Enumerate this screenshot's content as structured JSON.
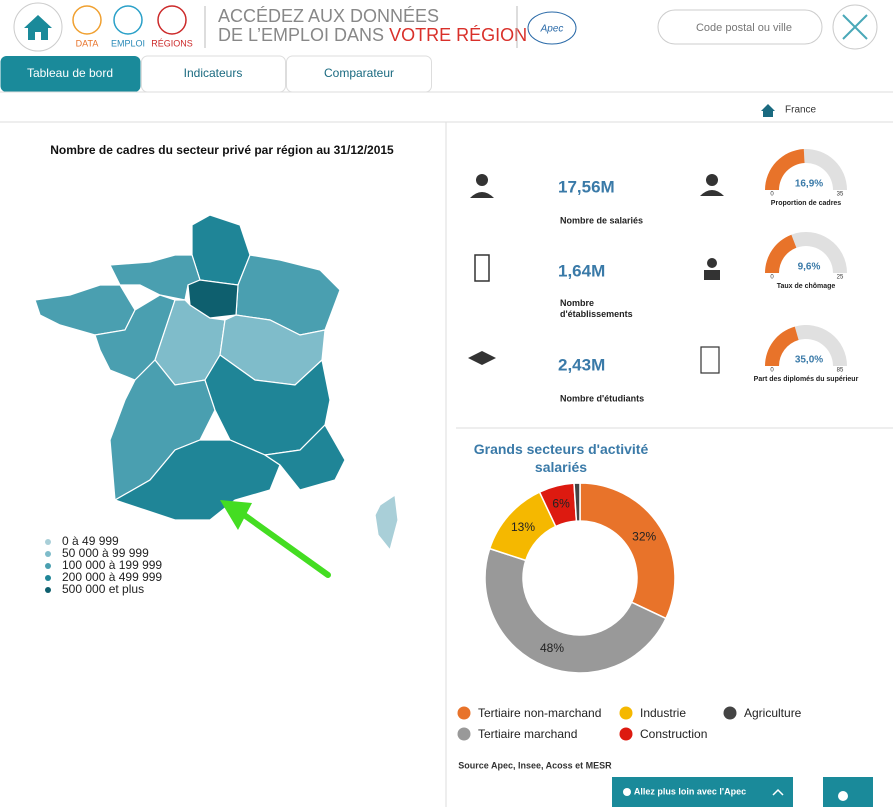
{
  "header": {
    "nav_icons": [
      "DATA",
      "EMPLOI",
      "RÉGIONS"
    ],
    "title_line1": "ACCÉDEZ AUX DONNÉES",
    "title_line2": "DE L’EMPLOI DANS",
    "title_highlight": "VOTRE RÉGION",
    "logo": "Apec",
    "search_placeholder": "Code postal ou ville"
  },
  "tabs": [
    "Tableau de bord",
    "Indicateurs",
    "Comparateur"
  ],
  "breadcrumb": "France",
  "map": {
    "title": "Nombre de cadres du secteur privé par région au 31/12/2015",
    "legend": [
      {
        "label": "0 à 49 999",
        "color": "#a9cfd8"
      },
      {
        "label": "50 000 à 99 999",
        "color": "#7fbcca"
      },
      {
        "label": "100 000 à 199 999",
        "color": "#4a9fb0"
      },
      {
        "label": "200 000 à 499 999",
        "color": "#1f8597"
      },
      {
        "label": "500 000 et plus",
        "color": "#0e5f6e"
      }
    ]
  },
  "kpis": [
    {
      "value": "17,56M",
      "label": "Nombre de salariés"
    },
    {
      "value": "1,64M",
      "label": "Nombre d'établissements"
    },
    {
      "value": "2,43M",
      "label": "Nombre d'étudiants"
    }
  ],
  "gauges": [
    {
      "value": 16.9,
      "label": "16,9%",
      "min": 0,
      "max": 35,
      "name": "Proportion de cadres"
    },
    {
      "value": 9.6,
      "label": "9,6%",
      "min": 0,
      "max": 25,
      "name": "Taux de chômage"
    },
    {
      "value": 35.0,
      "label": "35,0%",
      "min": 0,
      "max": 85,
      "name": "Part des diplomés du supérieur"
    }
  ],
  "chart_data": {
    "type": "donut",
    "title": "Grands secteurs d'activité salariés",
    "categories": [
      "Tertiaire non-marchand",
      "Tertiaire marchand",
      "Industrie",
      "Construction",
      "Agriculture"
    ],
    "values": [
      32,
      48,
      13,
      6,
      1
    ],
    "value_labels": [
      "32%",
      "48%",
      "13%",
      "6%",
      null
    ],
    "colors": [
      "#e8732a",
      "#999999",
      "#f5b800",
      "#dd1a10",
      "#444444"
    ],
    "legend_order": [
      0,
      2,
      4,
      1,
      3
    ]
  },
  "source": "Source Apec, Insee, Acoss et MESR",
  "footer_button": "Allez plus loin avec l'Apec"
}
